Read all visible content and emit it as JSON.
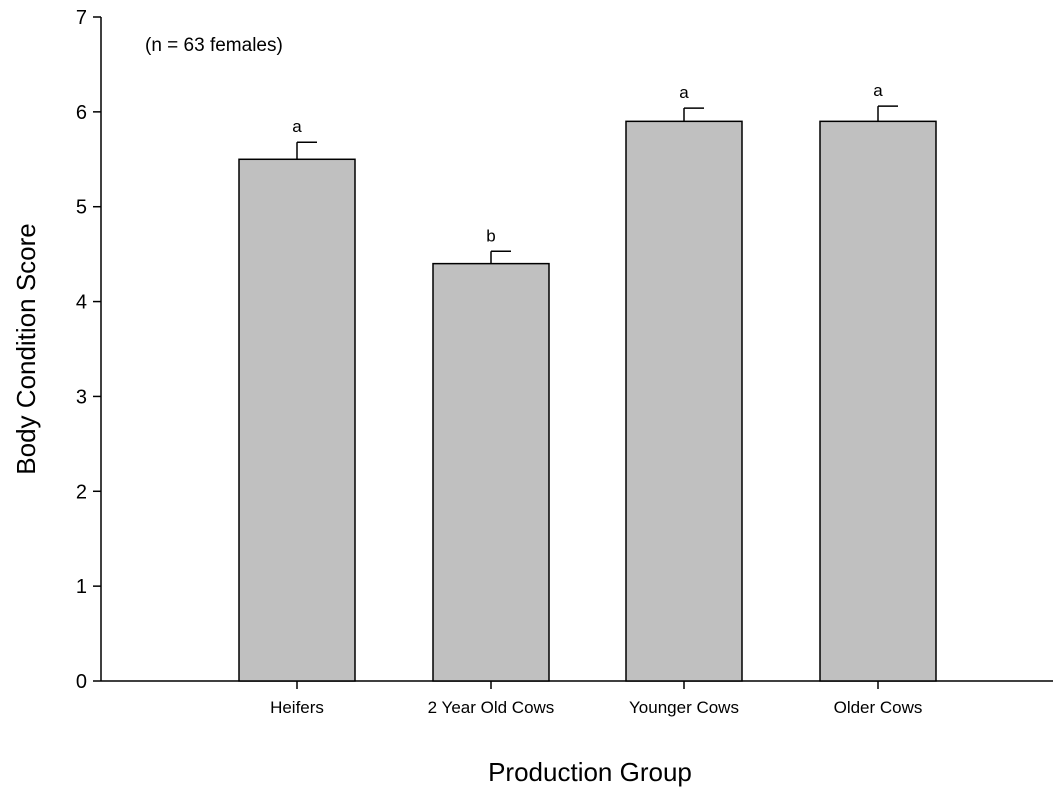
{
  "chart_data": {
    "type": "bar",
    "categories": [
      "Heifers",
      "2 Year Old Cows",
      "Younger Cows",
      "Older Cows"
    ],
    "values": [
      5.5,
      4.4,
      5.9,
      5.9
    ],
    "error_upper": [
      0.18,
      0.13,
      0.14,
      0.16
    ],
    "significance_letters": [
      "a",
      "b",
      "a",
      "a"
    ],
    "annotation": "(n = 63 females)",
    "xlabel": "Production Group",
    "ylabel": "Body Condition Score",
    "ylim": [
      0,
      7
    ],
    "yticks": [
      0,
      1,
      2,
      3,
      4,
      5,
      6,
      7
    ],
    "grid": false,
    "bar_color": "#c0c0c0",
    "bar_edge_color": "#000000"
  }
}
